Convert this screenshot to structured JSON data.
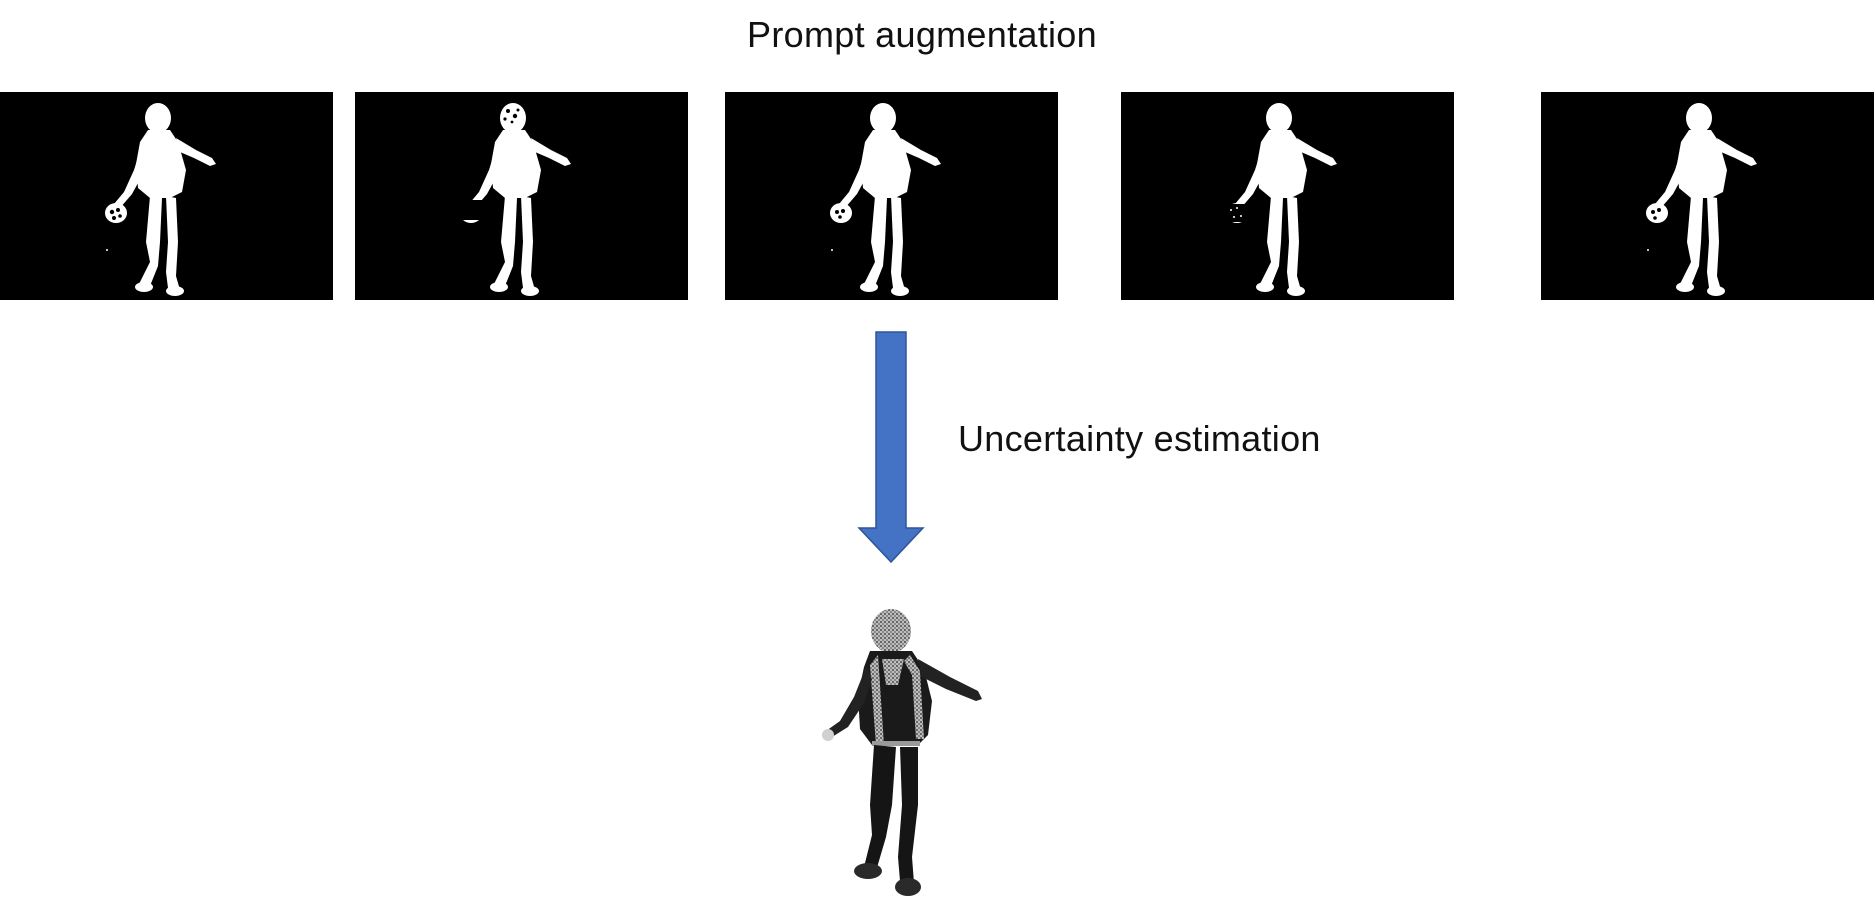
{
  "diagram": {
    "title": "Prompt augmentation",
    "step_label": "Uncertainty estimation",
    "arrow_color": "#4472C4",
    "mask_panels": [
      {
        "name": "mask-1",
        "variant": "hand-holes"
      },
      {
        "name": "mask-2",
        "variant": "head-holes"
      },
      {
        "name": "mask-3",
        "variant": "hand-holes"
      },
      {
        "name": "mask-4",
        "variant": "hand-faded"
      },
      {
        "name": "mask-5",
        "variant": "hand-holes"
      }
    ],
    "result": {
      "name": "uncertainty-map",
      "style": "grayscale person on white"
    }
  }
}
